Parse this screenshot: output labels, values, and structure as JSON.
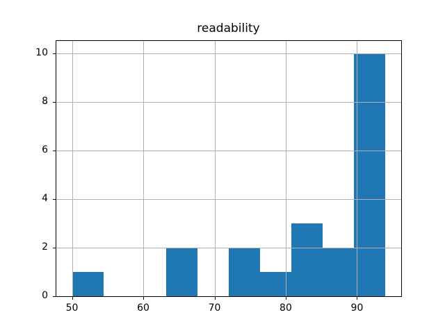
{
  "chart_data": {
    "type": "histogram",
    "title": "readability",
    "bin_edges": [
      50.0,
      54.4,
      58.8,
      63.2,
      67.6,
      72.0,
      76.4,
      80.8,
      85.2,
      89.6,
      94.0
    ],
    "counts": [
      1,
      0,
      0,
      2,
      0,
      2,
      1,
      3,
      2,
      10
    ],
    "xticks": [
      50,
      60,
      70,
      80,
      90
    ],
    "yticks": [
      0,
      2,
      4,
      6,
      8,
      10
    ],
    "xlim": [
      47.8,
      96.2
    ],
    "ylim": [
      0,
      10.5
    ],
    "grid": true,
    "legend": false,
    "colors": {
      "bar": "#1f77b4",
      "grid": "#b0b0b0",
      "spine": "#000000",
      "text": "#000000",
      "background": "#ffffff"
    }
  }
}
